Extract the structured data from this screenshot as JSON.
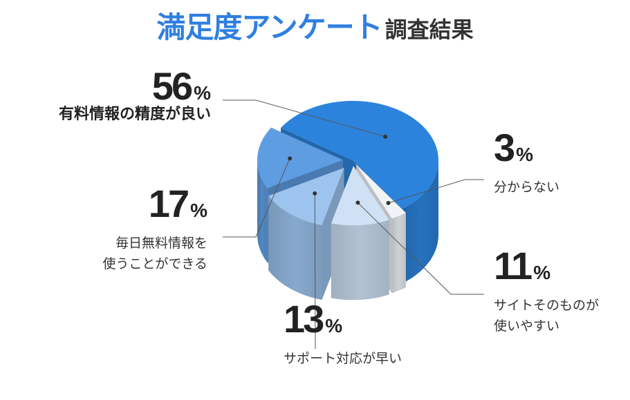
{
  "title": {
    "accent": "満足度アンケート",
    "rest": "調査結果"
  },
  "chart_data": {
    "type": "pie",
    "style": "3d-exploded",
    "unit": "%",
    "slices": [
      {
        "label_lines": [
          "有料情報の精度が良い"
        ],
        "value": 56,
        "color": "#2c83dc"
      },
      {
        "label_lines": [
          "分からない"
        ],
        "value": 3,
        "color": "#f1f4f7"
      },
      {
        "label_lines": [
          "サイトそのものが",
          "使いやすい"
        ],
        "value": 11,
        "color": "#cfe2f5"
      },
      {
        "label_lines": [
          "サポート対応が早い"
        ],
        "value": 13,
        "color": "#9cc4ee"
      },
      {
        "label_lines": [
          "毎日無料情報を",
          "使うことができる"
        ],
        "value": 17,
        "color": "#5e9de2"
      }
    ]
  }
}
